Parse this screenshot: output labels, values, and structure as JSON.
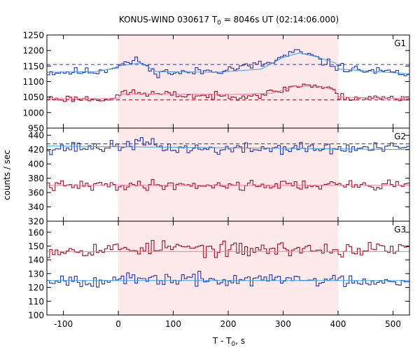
{
  "chart_data": {
    "type": "line",
    "title": "KONUS-WIND 030617 T",
    "title_sub": "0",
    "title_tail": " = 8046s UT (02:14:06.000)",
    "xlabel": "T - T",
    "xlabel_sub": "0",
    "xlabel_tail": ", s",
    "ylabel": "counts / sec",
    "xlim": [
      -130,
      530
    ],
    "x_ticks": [
      -100,
      0,
      100,
      200,
      300,
      400,
      500
    ],
    "x_tick_labels": [
      "-100",
      "0",
      "100",
      "200",
      "300",
      "400",
      "500"
    ],
    "highlight": {
      "x0": 0,
      "x1": 400,
      "color": "#fde8ea"
    },
    "bin_width": 5,
    "colors": {
      "blue": "#2233aa",
      "red": "#a01020",
      "blue_fit": "#3aa0e8",
      "red_fit": "#f07aa0",
      "blue_bg": "#2a3ab8",
      "red_bg": "#c01830"
    },
    "panels": [
      {
        "label": "G1",
        "ylim": [
          950,
          1250
        ],
        "y_ticks": [
          950,
          1000,
          1050,
          1100,
          1150,
          1200,
          1250
        ],
        "y_tick_labels": [
          "950",
          "1000",
          "1050",
          "1100",
          "1150",
          "1200",
          "1250"
        ],
        "series": [
          {
            "color": "blue",
            "segments": [
              [
                -130,
                1130
              ],
              [
                -40,
                1132
              ],
              [
                -10,
                1145
              ],
              [
                0,
                1155
              ],
              [
                40,
                1168
              ],
              [
                60,
                1132
              ],
              [
                120,
                1128
              ],
              [
                200,
                1140
              ],
              [
                280,
                1160
              ],
              [
                300,
                1180
              ],
              [
                320,
                1195
              ],
              [
                345,
                1188
              ],
              [
                370,
                1165
              ],
              [
                395,
                1150
              ],
              [
                420,
                1140
              ],
              [
                500,
                1128
              ],
              [
                530,
                1125
              ]
            ],
            "noise": 12,
            "seed": 11
          },
          {
            "color": "red",
            "segments": [
              [
                -130,
                1045
              ],
              [
                0,
                1045
              ],
              [
                5,
                1068
              ],
              [
                40,
                1062
              ],
              [
                90,
                1058
              ],
              [
                180,
                1052
              ],
              [
                260,
                1058
              ],
              [
                290,
                1068
              ],
              [
                320,
                1085
              ],
              [
                345,
                1090
              ],
              [
                370,
                1082
              ],
              [
                395,
                1070
              ],
              [
                402,
                1050
              ],
              [
                530,
                1045
              ]
            ],
            "noise": 10,
            "seed": 23
          }
        ],
        "fits": [
          {
            "color": "blue_fit",
            "points": [
              [
                -130,
                1130
              ],
              [
                -40,
                1132
              ],
              [
                -10,
                1142
              ],
              [
                0,
                1150
              ],
              [
                40,
                1160
              ],
              [
                70,
                1132
              ],
              [
                180,
                1130
              ],
              [
                260,
                1140
              ],
              [
                300,
                1178
              ],
              [
                330,
                1192
              ],
              [
                360,
                1180
              ],
              [
                395,
                1160
              ],
              [
                402,
                1140
              ],
              [
                530,
                1125
              ]
            ]
          },
          {
            "color": "red_fit",
            "points": [
              [
                -130,
                1045
              ],
              [
                0,
                1045
              ],
              [
                5,
                1060
              ],
              [
                100,
                1060
              ],
              [
                200,
                1058
              ],
              [
                280,
                1062
              ],
              [
                320,
                1085
              ],
              [
                370,
                1085
              ],
              [
                395,
                1070
              ],
              [
                402,
                1050
              ],
              [
                530,
                1045
              ]
            ]
          }
        ],
        "background": [
          {
            "color": "blue_bg",
            "y": 1155
          },
          {
            "color": "red_bg",
            "y": 1041
          }
        ]
      },
      {
        "label": "G2",
        "ylim": [
          320,
          450
        ],
        "y_ticks": [
          320,
          340,
          360,
          380,
          400,
          420,
          440
        ],
        "y_tick_labels": [
          "320",
          "340",
          "360",
          "380",
          "400",
          "420",
          "440"
        ],
        "series": [
          {
            "color": "blue",
            "segments": [
              [
                -130,
                422
              ],
              [
                0,
                424
              ],
              [
                40,
                430
              ],
              [
                90,
                422
              ],
              [
                200,
                420
              ],
              [
                300,
                422
              ],
              [
                400,
                421
              ],
              [
                530,
                422
              ]
            ],
            "noise": 7,
            "seed": 37
          },
          {
            "color": "red",
            "segments": [
              [
                -130,
                369
              ],
              [
                0,
                370
              ],
              [
                100,
                371
              ],
              [
                200,
                370
              ],
              [
                300,
                371
              ],
              [
                400,
                370
              ],
              [
                530,
                371
              ]
            ],
            "noise": 6,
            "seed": 41
          }
        ],
        "fits": [
          {
            "color": "blue_fit",
            "points": [
              [
                -130,
                425
              ],
              [
                530,
                420
              ]
            ]
          },
          {
            "color": "red_fit",
            "points": [
              [
                -130,
                370
              ],
              [
                530,
                370
              ]
            ]
          }
        ],
        "background": [
          {
            "color": "blue_bg",
            "y": 428
          }
        ]
      },
      {
        "label": "G3",
        "ylim": [
          100,
          168
        ],
        "y_ticks": [
          100,
          110,
          120,
          130,
          140,
          150,
          160
        ],
        "y_tick_labels": [
          "100",
          "110",
          "120",
          "130",
          "140",
          "150",
          "160"
        ],
        "series": [
          {
            "color": "red",
            "segments": [
              [
                -130,
                147
              ],
              [
                0,
                148
              ],
              [
                100,
                149
              ],
              [
                200,
                147
              ],
              [
                300,
                148
              ],
              [
                400,
                147
              ],
              [
                530,
                148
              ]
            ],
            "noise": 4.5,
            "seed": 53
          },
          {
            "color": "blue",
            "segments": [
              [
                -130,
                126
              ],
              [
                0,
                125
              ],
              [
                100,
                126
              ],
              [
                200,
                125
              ],
              [
                300,
                126
              ],
              [
                400,
                125
              ],
              [
                530,
                125
              ]
            ],
            "noise": 4,
            "seed": 67
          }
        ],
        "fits": [
          {
            "color": "red_fit",
            "points": [
              [
                -130,
                146
              ],
              [
                530,
                146
              ]
            ]
          },
          {
            "color": "blue_fit",
            "points": [
              [
                -130,
                125
              ],
              [
                530,
                125
              ]
            ]
          }
        ],
        "background": []
      }
    ]
  }
}
